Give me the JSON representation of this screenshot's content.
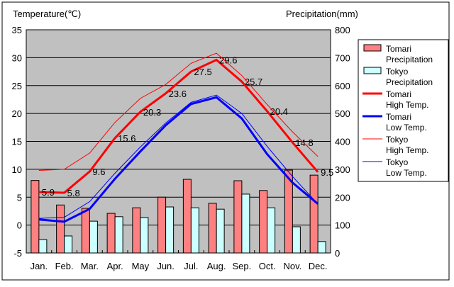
{
  "chart_data": {
    "type": "bar+line",
    "ylabel_left": "Temperature(℃)",
    "ylabel_right": "Precipitation(mm)",
    "ylim_left": [
      -5,
      35
    ],
    "ylim_right": [
      0,
      800
    ],
    "yticks_left": [
      "-5",
      "0",
      "5",
      "10",
      "15",
      "20",
      "25",
      "30",
      "35"
    ],
    "yticks_right": [
      "0",
      "100",
      "200",
      "300",
      "400",
      "500",
      "600",
      "700",
      "800"
    ],
    "categories": [
      "Jan.",
      "Feb.",
      "Mar.",
      "Apr.",
      "May",
      "Jun.",
      "Jul.",
      "Aug.",
      "Sep.",
      "Oct.",
      "Nov.",
      "Dec."
    ],
    "series": [
      {
        "name": "Tomari Precipitation",
        "label_lines": [
          "Tomari",
          "Precipitation"
        ],
        "kind": "bar",
        "color": "#ff8080",
        "values": [
          260,
          172,
          160,
          142,
          162,
          200,
          264,
          178,
          259,
          224,
          297,
          279
        ]
      },
      {
        "name": "Tokyo Precipitation",
        "label_lines": [
          "Tokyo",
          "Precipitation"
        ],
        "kind": "bar",
        "color": "#ccffff",
        "values": [
          48,
          61,
          114,
          130,
          127,
          165,
          162,
          157,
          211,
          162,
          94,
          41
        ]
      },
      {
        "name": "Tomari High Temp.",
        "label_lines": [
          "Tomari",
          "High Temp."
        ],
        "kind": "line",
        "color": "#ff0000",
        "width": 3,
        "values": [
          5.9,
          5.8,
          9.6,
          15.6,
          20.3,
          23.6,
          27.5,
          29.6,
          25.7,
          20.4,
          14.8,
          9.5
        ],
        "labels": [
          "5.9",
          "5.8",
          "9.6",
          "15.6",
          "20.3",
          "23.6",
          "27.5",
          "29.6",
          "25.7",
          "20.4",
          "14.8",
          "9.5"
        ]
      },
      {
        "name": "Tomari Low Temp.",
        "label_lines": [
          "Tomari",
          "Low Temp."
        ],
        "kind": "line",
        "color": "#0000ff",
        "width": 3,
        "values": [
          1.0,
          0.6,
          2.9,
          8.3,
          13.2,
          17.9,
          21.7,
          22.9,
          19.1,
          12.7,
          7.6,
          3.8
        ]
      },
      {
        "name": "Tokyo High Temp.",
        "label_lines": [
          "Tokyo",
          "High Temp."
        ],
        "kind": "line",
        "color": "#ff0000",
        "width": 1,
        "values": [
          9.8,
          10.0,
          12.9,
          18.4,
          22.7,
          25.2,
          29.0,
          30.8,
          26.8,
          21.6,
          16.7,
          12.3
        ]
      },
      {
        "name": "Tokyo Low Temp.",
        "label_lines": [
          "Tokyo",
          "Low Temp."
        ],
        "kind": "line",
        "color": "#0000ff",
        "width": 1,
        "values": [
          1.2,
          1.4,
          4.2,
          9.3,
          14.0,
          18.3,
          22.0,
          23.3,
          20.0,
          14.1,
          8.7,
          3.8
        ]
      }
    ],
    "legend": "right"
  }
}
